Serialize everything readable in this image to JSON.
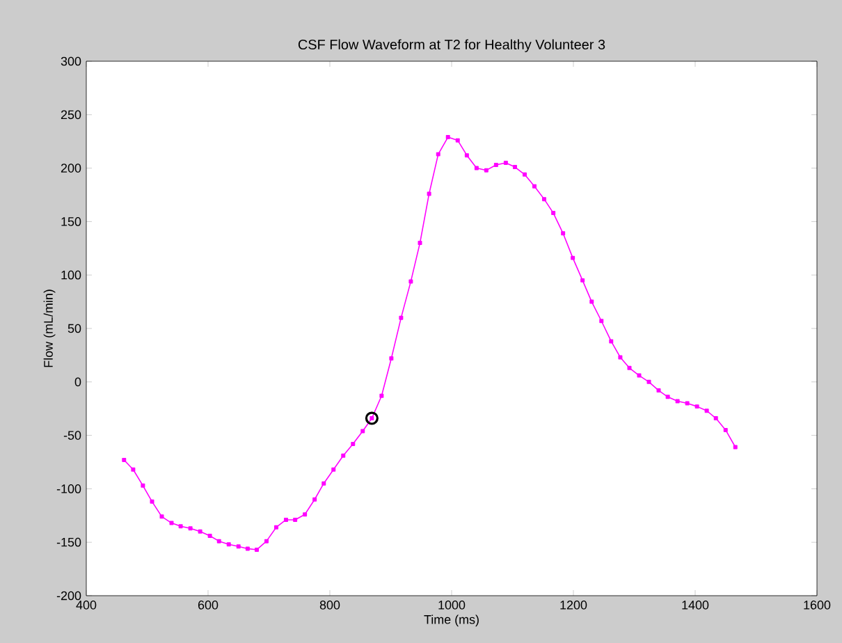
{
  "chart_data": {
    "type": "line",
    "title": "CSF Flow Waveform at T2 for Healthy Volunteer 3",
    "xlabel": "Time (ms)",
    "ylabel": "Flow (mL/min)",
    "xlim": [
      400,
      1600
    ],
    "ylim": [
      -200,
      300
    ],
    "xticks": [
      400,
      600,
      800,
      1000,
      1200,
      1400,
      1600
    ],
    "yticks": [
      -200,
      -150,
      -100,
      -50,
      0,
      50,
      100,
      150,
      200,
      250,
      300
    ],
    "grid": false,
    "marker": "square",
    "line_style": "solid",
    "series": [
      {
        "color": "#ff00ff",
        "x": [
          462,
          477,
          493,
          508,
          524,
          540,
          555,
          571,
          587,
          603,
          618,
          634,
          650,
          665,
          680,
          696,
          712,
          728,
          743,
          759,
          775,
          790,
          806,
          822,
          838,
          854,
          869,
          885,
          901,
          917,
          933,
          948,
          963,
          978,
          994,
          1010,
          1025,
          1041,
          1057,
          1073,
          1089,
          1104,
          1120,
          1136,
          1152,
          1167,
          1183,
          1199,
          1215,
          1230,
          1246,
          1262,
          1277,
          1292,
          1308,
          1324,
          1340,
          1355,
          1371,
          1387,
          1403,
          1419,
          1434,
          1450,
          1466
        ],
        "values": [
          -73,
          -82,
          -97,
          -112,
          -126,
          -132,
          -135,
          -137,
          -140,
          -144,
          -149,
          -152,
          -154,
          -156,
          -157,
          -149,
          -136,
          -129,
          -129,
          -124,
          -110,
          -95,
          -82,
          -69,
          -58,
          -46,
          -34,
          -13,
          22,
          60,
          94,
          130,
          176,
          213,
          229,
          226,
          212,
          200,
          198,
          203,
          205,
          201,
          194,
          183,
          171,
          158,
          139,
          116,
          95,
          75,
          57,
          38,
          23,
          13,
          6,
          0,
          -8,
          -14,
          -18,
          -20,
          -23,
          -27,
          -34,
          -45,
          -61
        ]
      },
      {
        "type": "scatter",
        "color": "#000000",
        "marker": "circle",
        "x": [
          869
        ],
        "values": [
          -34
        ]
      }
    ]
  }
}
